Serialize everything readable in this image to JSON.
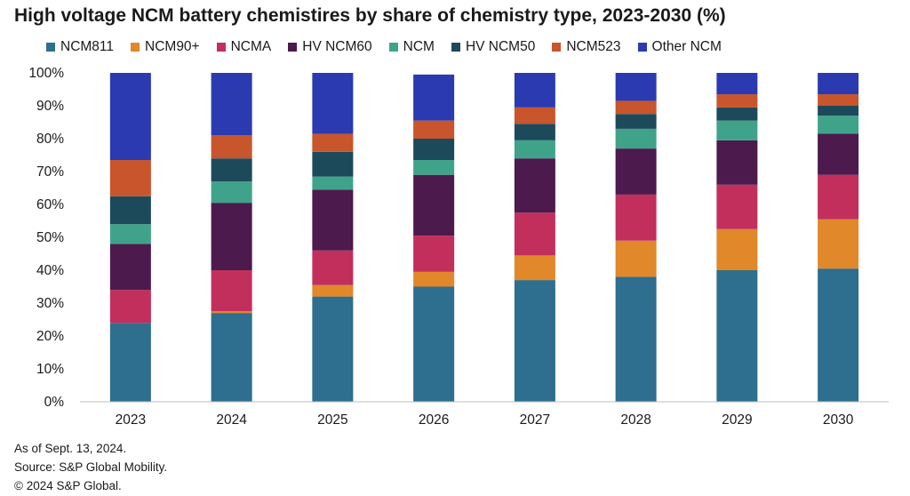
{
  "title": "High voltage NCM battery chemistires by share of chemistry type, 2023-2030 (%)",
  "footnotes": [
    "As of Sept. 13, 2024.",
    "Source: S&P Global Mobility.",
    "© 2024 S&P Global."
  ],
  "chart_data": {
    "type": "bar",
    "stacked": true,
    "categories": [
      "2023",
      "2024",
      "2025",
      "2026",
      "2027",
      "2028",
      "2029",
      "2030"
    ],
    "y_ticks": [
      "0%",
      "10%",
      "20%",
      "30%",
      "40%",
      "50%",
      "60%",
      "70%",
      "80%",
      "90%",
      "100%"
    ],
    "ylim": [
      0,
      100
    ],
    "legend_position": "top",
    "grid": false,
    "series": [
      {
        "name": "NCM811",
        "color": "#2e6e8e",
        "values": [
          24,
          27,
          32,
          35,
          37,
          38,
          40,
          40.5
        ]
      },
      {
        "name": "NCM90+",
        "color": "#e0882a",
        "values": [
          0,
          0.5,
          3.5,
          4.5,
          7.5,
          11,
          12.5,
          15
        ]
      },
      {
        "name": "NCMA",
        "color": "#c22f5d",
        "values": [
          10,
          12.5,
          10.5,
          11,
          13,
          14,
          13.5,
          13.5
        ]
      },
      {
        "name": "HV NCM60",
        "color": "#4d1a4d",
        "values": [
          14,
          20.5,
          18.5,
          18.5,
          16.5,
          14,
          13.5,
          12.5
        ]
      },
      {
        "name": "NCM",
        "color": "#3fa38a",
        "values": [
          6,
          6.5,
          4,
          4.5,
          5.5,
          6,
          6,
          5.5
        ]
      },
      {
        "name": "HV NCM50",
        "color": "#1d4a5a",
        "values": [
          8.5,
          7,
          7.5,
          6.5,
          5,
          4.5,
          4,
          3
        ]
      },
      {
        "name": "NCM523",
        "color": "#c8552b",
        "values": [
          11,
          7,
          5.5,
          5.5,
          5,
          4,
          4,
          3.5
        ]
      },
      {
        "name": "Other NCM",
        "color": "#2b3ab0",
        "values": [
          26.5,
          19,
          18.5,
          14,
          10.5,
          8.5,
          6.5,
          6.5
        ]
      }
    ]
  }
}
